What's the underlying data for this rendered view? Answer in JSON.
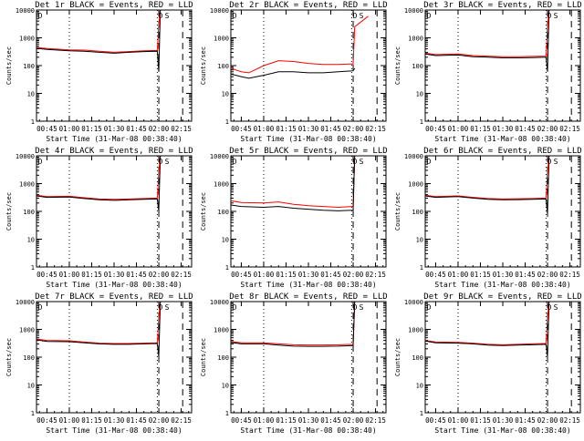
{
  "colors": {
    "events": "#000000",
    "lld": "#ff0000",
    "axis": "#000000",
    "background": "#ffffff"
  },
  "chart_data": {
    "type": "line",
    "layout": "3x3 grid of detector panels",
    "yscale": "log",
    "ylim": [
      1,
      10000
    ],
    "ylabel": "Counts/sec",
    "xlabel": "Start Time (31-Mar-08 00:38:40)",
    "x_tick_labels": [
      "00:45",
      "01:00",
      "01:15",
      "01:30",
      "01:45",
      "02:00",
      "02:15"
    ],
    "y_tick_labels": [
      "1",
      "10",
      "100",
      "1000",
      "10000"
    ],
    "marker_label": "D",
    "marker_label_2": "S",
    "grid": false,
    "panels": [
      {
        "title": "Det 1r BLACK = Events, RED = LLD",
        "series": [
          {
            "name": "Events",
            "color": "#000000",
            "x": [
              "00:38",
              "00:45",
              "01:00",
              "01:10",
              "01:20",
              "01:30",
              "01:40",
              "01:50",
              "01:59",
              "02:00",
              "02:01"
            ],
            "y": [
              420,
              380,
              340,
              330,
              300,
              280,
              300,
              320,
              330,
              60,
              10000
            ]
          },
          {
            "name": "LLD",
            "color": "#ff0000",
            "x": [
              "00:38",
              "00:45",
              "01:00",
              "01:10",
              "01:20",
              "01:30",
              "01:40",
              "01:50",
              "01:59",
              "02:00",
              "02:01"
            ],
            "y": [
              450,
              410,
              370,
              360,
              330,
              300,
              320,
              340,
              350,
              3000,
              10000
            ]
          }
        ]
      },
      {
        "title": "Det 2r BLACK = Events, RED = LLD",
        "series": [
          {
            "name": "Events",
            "color": "#000000",
            "x": [
              "00:38",
              "00:45",
              "00:50",
              "01:00",
              "01:10",
              "01:20",
              "01:30",
              "01:40",
              "01:50",
              "02:00",
              "02:01"
            ],
            "y": [
              50,
              40,
              35,
              45,
              60,
              60,
              55,
              55,
              60,
              65,
              80
            ]
          },
          {
            "name": "LLD",
            "color": "#ff0000",
            "x": [
              "00:38",
              "00:45",
              "00:50",
              "01:00",
              "01:10",
              "01:20",
              "01:30",
              "01:40",
              "01:50",
              "02:00",
              "02:01",
              "02:10"
            ],
            "y": [
              80,
              60,
              55,
              100,
              150,
              140,
              120,
              110,
              110,
              115,
              2500,
              6000
            ]
          }
        ]
      },
      {
        "title": "Det 3r BLACK = Events, RED = LLD",
        "series": [
          {
            "name": "Events",
            "color": "#000000",
            "x": [
              "00:38",
              "00:45",
              "01:00",
              "01:10",
              "01:20",
              "01:30",
              "01:40",
              "01:50",
              "01:59",
              "02:00",
              "02:01"
            ],
            "y": [
              260,
              230,
              240,
              210,
              200,
              190,
              190,
              195,
              200,
              60,
              10000
            ]
          },
          {
            "name": "LLD",
            "color": "#ff0000",
            "x": [
              "00:38",
              "00:45",
              "01:00",
              "01:10",
              "01:20",
              "01:30",
              "01:40",
              "01:50",
              "01:59",
              "02:00",
              "02:01"
            ],
            "y": [
              280,
              250,
              260,
              230,
              220,
              210,
              210,
              215,
              220,
              2500,
              10000
            ]
          }
        ]
      },
      {
        "title": "Det 4r BLACK = Events, RED = LLD",
        "series": [
          {
            "name": "Events",
            "color": "#000000",
            "x": [
              "00:38",
              "00:45",
              "01:00",
              "01:10",
              "01:20",
              "01:30",
              "01:40",
              "01:50",
              "01:59",
              "02:00",
              "02:01"
            ],
            "y": [
              360,
              320,
              330,
              290,
              260,
              250,
              260,
              270,
              280,
              100,
              10000
            ]
          },
          {
            "name": "LLD",
            "color": "#ff0000",
            "x": [
              "00:38",
              "00:45",
              "01:00",
              "01:10",
              "01:20",
              "01:30",
              "01:40",
              "01:50",
              "01:59",
              "02:00",
              "02:01"
            ],
            "y": [
              380,
              340,
              350,
              310,
              280,
              270,
              280,
              290,
              300,
              2500,
              10000
            ]
          }
        ]
      },
      {
        "title": "Det 5r BLACK = Events, RED = LLD",
        "series": [
          {
            "name": "Events",
            "color": "#000000",
            "x": [
              "00:38",
              "00:45",
              "01:00",
              "01:10",
              "01:20",
              "01:30",
              "01:40",
              "01:50",
              "02:00",
              "02:01"
            ],
            "y": [
              170,
              150,
              140,
              150,
              130,
              120,
              110,
              105,
              110,
              10000
            ]
          },
          {
            "name": "LLD",
            "color": "#ff0000",
            "x": [
              "00:38",
              "00:45",
              "01:00",
              "01:10",
              "01:20",
              "01:30",
              "01:40",
              "01:50",
              "02:00",
              "02:01"
            ],
            "y": [
              240,
              210,
              200,
              220,
              180,
              160,
              150,
              140,
              150,
              10000
            ]
          }
        ]
      },
      {
        "title": "Det 6r BLACK = Events, RED = LLD",
        "series": [
          {
            "name": "Events",
            "color": "#000000",
            "x": [
              "00:38",
              "00:45",
              "01:00",
              "01:10",
              "01:20",
              "01:30",
              "01:40",
              "01:50",
              "01:59",
              "02:00",
              "02:01"
            ],
            "y": [
              360,
              320,
              340,
              300,
              270,
              260,
              265,
              270,
              280,
              80,
              10000
            ]
          },
          {
            "name": "LLD",
            "color": "#ff0000",
            "x": [
              "00:38",
              "00:45",
              "01:00",
              "01:10",
              "01:20",
              "01:30",
              "01:40",
              "01:50",
              "01:59",
              "02:00",
              "02:01"
            ],
            "y": [
              380,
              340,
              360,
              320,
              290,
              280,
              285,
              290,
              300,
              2500,
              10000
            ]
          }
        ]
      },
      {
        "title": "Det 7r BLACK = Events, RED = LLD",
        "series": [
          {
            "name": "Events",
            "color": "#000000",
            "x": [
              "00:38",
              "00:45",
              "01:00",
              "01:10",
              "01:20",
              "01:30",
              "01:40",
              "01:50",
              "01:59",
              "02:00",
              "02:01"
            ],
            "y": [
              420,
              370,
              360,
              330,
              300,
              290,
              290,
              300,
              310,
              100,
              10000
            ]
          },
          {
            "name": "LLD",
            "color": "#ff0000",
            "x": [
              "00:38",
              "00:45",
              "01:00",
              "01:10",
              "01:20",
              "01:30",
              "01:40",
              "01:50",
              "01:59",
              "02:00",
              "02:01"
            ],
            "y": [
              450,
              400,
              390,
              350,
              320,
              310,
              310,
              320,
              330,
              2500,
              10000
            ]
          }
        ]
      },
      {
        "title": "Det 8r BLACK = Events, RED = LLD",
        "series": [
          {
            "name": "Events",
            "color": "#000000",
            "x": [
              "00:38",
              "00:45",
              "01:00",
              "01:10",
              "01:20",
              "01:30",
              "01:40",
              "01:50",
              "02:00",
              "02:01"
            ],
            "y": [
              340,
              300,
              300,
              270,
              250,
              245,
              245,
              250,
              260,
              10000
            ]
          },
          {
            "name": "LLD",
            "color": "#ff0000",
            "x": [
              "00:38",
              "00:45",
              "01:00",
              "01:10",
              "01:20",
              "01:30",
              "01:40",
              "01:50",
              "02:00",
              "02:01"
            ],
            "y": [
              370,
              330,
              330,
              300,
              280,
              275,
              275,
              280,
              290,
              10000
            ]
          }
        ]
      },
      {
        "title": "Det 9r BLACK = Events, RED = LLD",
        "series": [
          {
            "name": "Events",
            "color": "#000000",
            "x": [
              "00:38",
              "00:45",
              "01:00",
              "01:10",
              "01:20",
              "01:30",
              "01:40",
              "01:50",
              "01:59",
              "02:00",
              "02:01"
            ],
            "y": [
              380,
              330,
              320,
              300,
              270,
              260,
              270,
              280,
              290,
              100,
              10000
            ]
          },
          {
            "name": "LLD",
            "color": "#ff0000",
            "x": [
              "00:38",
              "00:45",
              "01:00",
              "01:10",
              "01:20",
              "01:30",
              "01:40",
              "01:50",
              "01:59",
              "02:00",
              "02:01"
            ],
            "y": [
              400,
              350,
              340,
              320,
              290,
              280,
              290,
              300,
              310,
              2500,
              10000
            ]
          }
        ]
      }
    ]
  }
}
